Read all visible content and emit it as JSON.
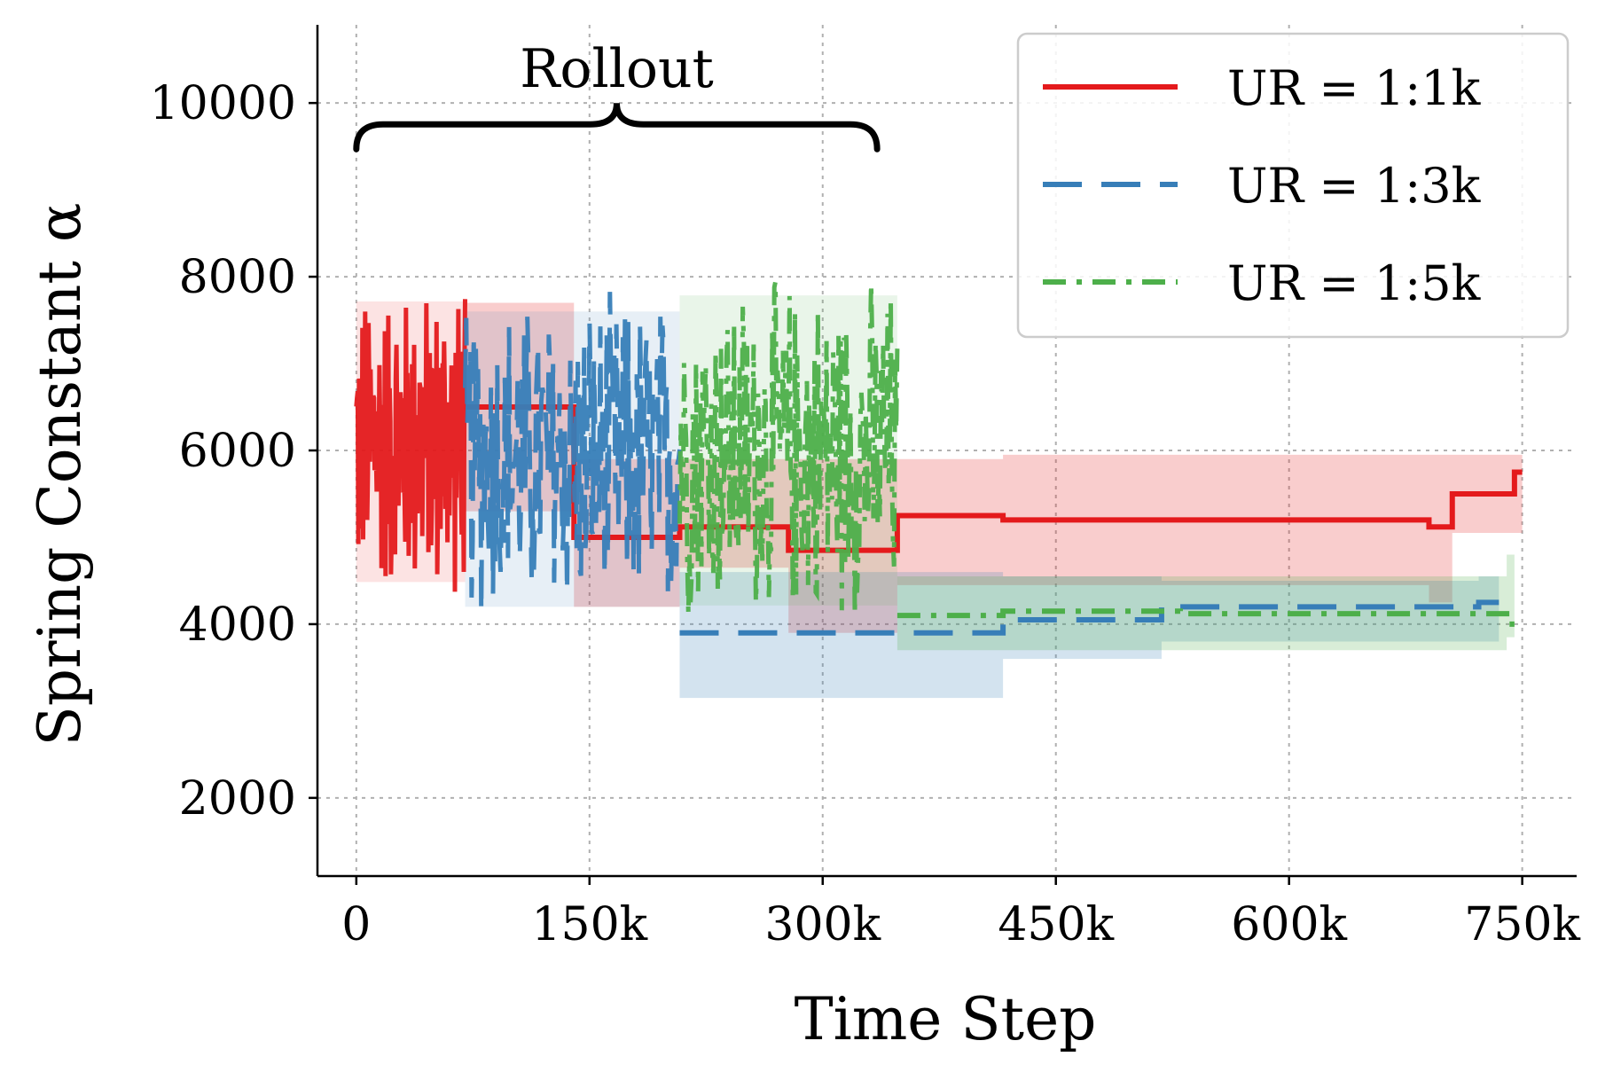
{
  "chart_data": {
    "type": "line",
    "title": "",
    "xlabel": "Time Step",
    "ylabel": "Spring Constant α",
    "xlim": [
      -25000,
      785000
    ],
    "ylim": [
      1100,
      10900
    ],
    "x_ticks": [
      0,
      150000,
      300000,
      450000,
      600000,
      750000
    ],
    "x_tick_labels": [
      "0",
      "150k",
      "300k",
      "450k",
      "600k",
      "750k"
    ],
    "y_ticks": [
      2000,
      4000,
      6000,
      8000,
      10000
    ],
    "y_tick_labels": [
      "2000",
      "4000",
      "6000",
      "8000",
      "10000"
    ],
    "grid": true,
    "legend_position": "top-right",
    "annotation": {
      "text": "Rollout",
      "x_start": 0,
      "x_end": 335000,
      "y": 9550
    },
    "series": [
      {
        "name": "UR = 1:1k",
        "color": "#e41a1c",
        "style": "solid",
        "rollout": {
          "x_start": 0,
          "x_end": 70000,
          "center": 6100,
          "amplitude": 1900,
          "points": 160
        },
        "x": [
          70000,
          140000,
          140000,
          208000,
          208000,
          278000,
          278000,
          348000,
          348000,
          416000,
          416000,
          690000,
          690000,
          705000,
          705000,
          745000,
          745000,
          750000
        ],
        "y": [
          6500,
          6500,
          5000,
          5000,
          5120,
          5120,
          4850,
          4850,
          5250,
          5250,
          5200,
          5200,
          5120,
          5120,
          5500,
          5500,
          5750,
          5750
        ],
        "band_upper": [
          7700,
          7700,
          5900,
          5900,
          5900,
          5900,
          5900,
          5900,
          5900,
          5900,
          5950,
          5950,
          5950,
          5950,
          5950,
          5950,
          5950,
          5950
        ],
        "band_lower": [
          5300,
          5300,
          4200,
          4200,
          4650,
          4650,
          3900,
          3900,
          4450,
          4450,
          4450,
          4450,
          4250,
          4250,
          5050,
          5050,
          5050,
          5050
        ]
      },
      {
        "name": "UR = 1:3k",
        "color": "#377eb8",
        "style": "dashed",
        "rollout": {
          "x_start": 70000,
          "x_end": 208000,
          "center": 5900,
          "amplitude": 2000,
          "points": 200
        },
        "x": [
          208000,
          278000,
          278000,
          348000,
          348000,
          416000,
          416000,
          518000,
          518000,
          722000,
          722000,
          735000
        ],
        "y": [
          3900,
          3900,
          3900,
          3900,
          3900,
          3900,
          4050,
          4050,
          4200,
          4200,
          4250,
          4250
        ],
        "band_upper": [
          4600,
          4600,
          4600,
          4600,
          4600,
          4600,
          4550,
          4550,
          4500,
          4500,
          4550,
          4550
        ],
        "band_lower": [
          3150,
          3150,
          3150,
          3150,
          3150,
          3150,
          3600,
          3600,
          3800,
          3800,
          3800,
          3800
        ]
      },
      {
        "name": "UR = 1:5k",
        "color": "#4daf4a",
        "style": "dashdot",
        "rollout": {
          "x_start": 208000,
          "x_end": 348000,
          "center": 6000,
          "amplitude": 2100,
          "points": 200
        },
        "x": [
          348000,
          416000,
          416000,
          530000,
          530000,
          740000,
          740000,
          745000
        ],
        "y": [
          4100,
          4100,
          4150,
          4150,
          4120,
          4120,
          4000,
          4000
        ],
        "band_upper": [
          4550,
          4550,
          4550,
          4550,
          4550,
          4550,
          4800,
          4800
        ],
        "band_lower": [
          3700,
          3700,
          3700,
          3700,
          3700,
          3700,
          3850,
          3850
        ]
      }
    ]
  }
}
